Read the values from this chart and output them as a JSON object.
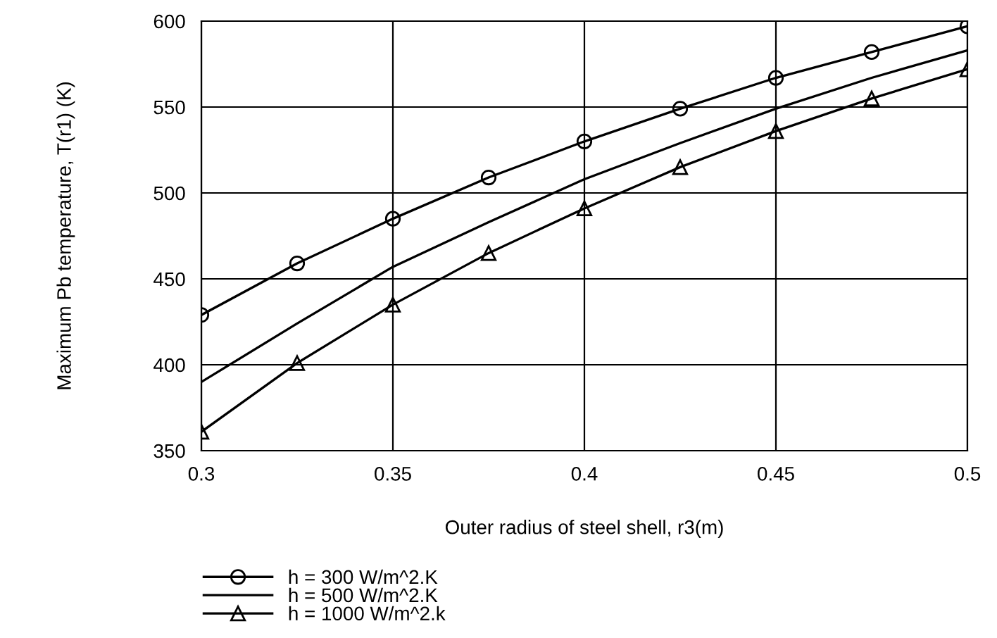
{
  "chart_data": {
    "type": "line",
    "xlabel": "Outer radius of steel shell, r3(m)",
    "ylabel": "Maximum Pb temperature, T(r1) (K)",
    "x": [
      0.3,
      0.325,
      0.35,
      0.375,
      0.4,
      0.425,
      0.45,
      0.475,
      0.5
    ],
    "series": [
      {
        "name": "h = 300 W/m^2.K",
        "color": "#000000",
        "marker": "circle",
        "values": [
          429,
          459,
          485,
          509,
          530,
          549,
          567,
          582,
          597
        ]
      },
      {
        "name": "h = 500 W/m^2.K",
        "color": "#000000",
        "marker": "none",
        "values": [
          390,
          424,
          457,
          483,
          508,
          529,
          549,
          567,
          583
        ]
      },
      {
        "name": "h = 1000 W/m^2.k",
        "color": "#000000",
        "marker": "triangle",
        "values": [
          361,
          401,
          435,
          465,
          491,
          515,
          536,
          555,
          572
        ]
      }
    ],
    "xlim": [
      0.3,
      0.5
    ],
    "xticks": [
      0.3,
      0.35,
      0.4,
      0.45,
      0.5
    ],
    "ylim": [
      350,
      600
    ],
    "yticks": [
      350,
      400,
      450,
      500,
      550,
      600
    ],
    "grid": true,
    "legend": "bottom left",
    "line_style": "solid"
  }
}
